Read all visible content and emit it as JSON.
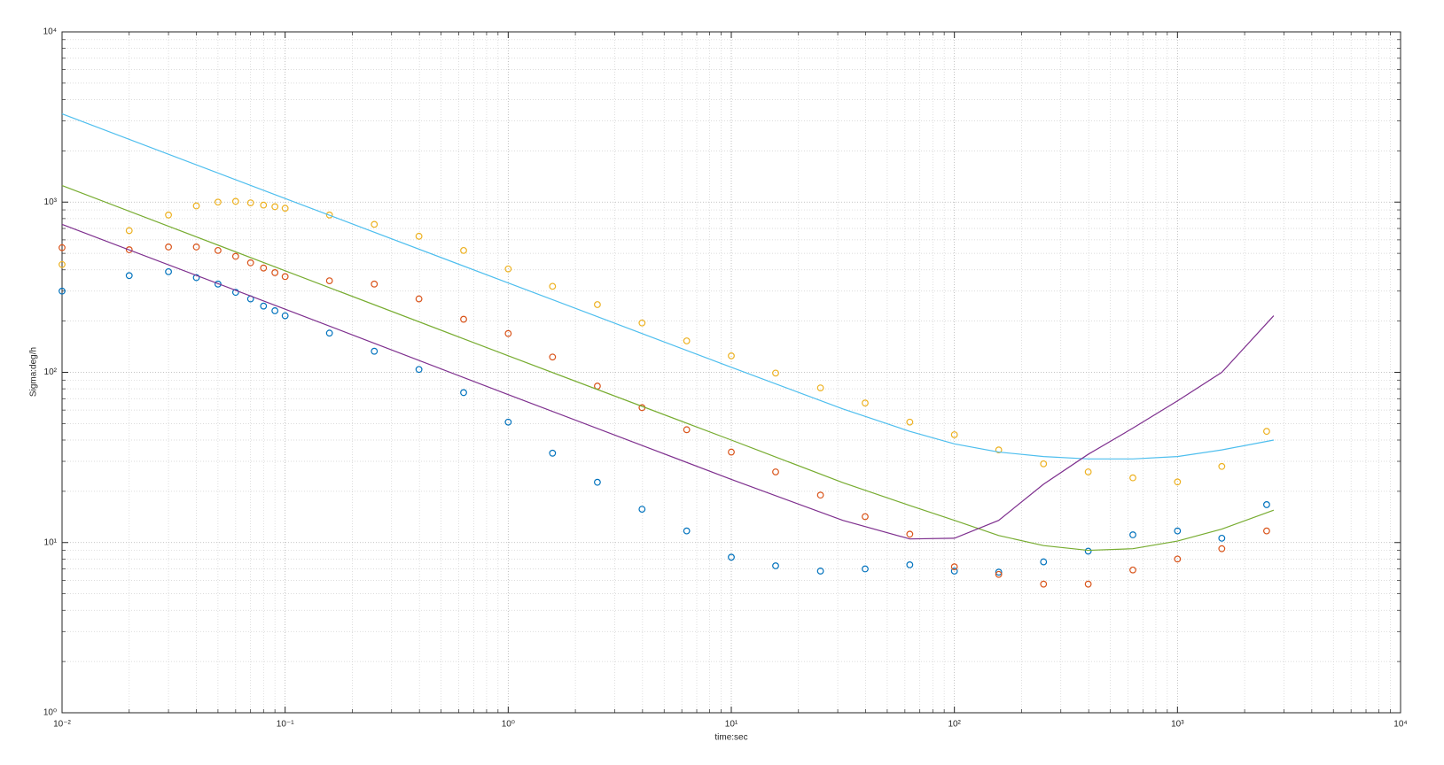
{
  "chart_data": {
    "type": "scatter",
    "x_label": "time:sec",
    "y_label": "Sigma:deg/h",
    "xscale": "log",
    "yscale": "log",
    "grid": true,
    "minor_grid": true,
    "xlim": [
      0.01,
      10000
    ],
    "ylim": [
      1,
      10000
    ],
    "xticks": [
      {
        "value": 0.01,
        "label": "10⁻²"
      },
      {
        "value": 0.1,
        "label": "10⁻¹"
      },
      {
        "value": 1,
        "label": "10⁰"
      },
      {
        "value": 10,
        "label": "10¹"
      },
      {
        "value": 100,
        "label": "10²"
      },
      {
        "value": 1000,
        "label": "10³"
      },
      {
        "value": 10000,
        "label": "10⁴"
      }
    ],
    "yticks": [
      {
        "value": 1,
        "label": "10⁰"
      },
      {
        "value": 10,
        "label": "10¹"
      },
      {
        "value": 100,
        "label": "10²"
      },
      {
        "value": 1000,
        "label": "10³"
      },
      {
        "value": 10000,
        "label": "10⁴"
      }
    ],
    "x": [
      0.01,
      0.02,
      0.03,
      0.04,
      0.05,
      0.06,
      0.07,
      0.08,
      0.09,
      0.1,
      0.158,
      0.251,
      0.398,
      0.631,
      1,
      1.58,
      2.51,
      3.98,
      6.31,
      10,
      15.8,
      25.1,
      39.8,
      63.1,
      100,
      158,
      251,
      398,
      631,
      1000,
      1580,
      2510
    ],
    "series": [
      {
        "mode": "markers",
        "color": "#0072bd",
        "values": [
          300,
          370,
          390,
          360,
          330,
          295,
          270,
          245,
          230,
          215,
          170,
          133,
          104,
          76,
          51,
          33.5,
          22.6,
          15.7,
          11.7,
          8.2,
          7.3,
          6.8,
          7.0,
          7.4,
          6.8,
          6.7,
          7.7,
          8.9,
          11.1,
          11.7,
          10.6,
          16.7
        ]
      },
      {
        "mode": "markers",
        "color": "#d95319",
        "values": [
          540,
          525,
          545,
          545,
          520,
          480,
          440,
          410,
          385,
          365,
          345,
          330,
          270,
          205,
          169,
          123,
          83,
          62,
          46,
          34,
          26,
          19,
          14.2,
          11.2,
          7.2,
          6.5,
          5.7,
          5.7,
          6.9,
          8.0,
          9.2,
          11.7
        ]
      },
      {
        "mode": "markers",
        "color": "#edb120",
        "values": [
          430,
          680,
          840,
          950,
          1000,
          1010,
          990,
          960,
          940,
          920,
          840,
          740,
          630,
          520,
          405,
          320,
          250,
          195,
          153,
          125,
          99,
          81,
          66,
          51,
          43,
          35,
          29,
          26,
          24,
          22.7,
          28,
          45
        ]
      },
      {
        "mode": "lines",
        "color": "#4dbeee",
        "x": [
          0.01,
          0.1,
          1,
          10,
          31.6,
          63.1,
          100,
          158,
          251,
          398,
          631,
          1000,
          1580,
          2700
        ],
        "values": [
          3300,
          1050,
          335,
          107,
          61,
          45,
          38,
          34,
          32,
          31,
          31,
          32,
          35,
          40
        ]
      },
      {
        "mode": "lines",
        "color": "#77ac30",
        "x": [
          0.01,
          0.1,
          1,
          10,
          31.6,
          63.1,
          100,
          158,
          251,
          398,
          631,
          1000,
          1580,
          2700
        ],
        "values": [
          1250,
          395,
          125,
          40,
          22.5,
          16.5,
          13.5,
          11,
          9.6,
          9,
          9.2,
          10.2,
          12,
          15.5
        ]
      },
      {
        "mode": "lines",
        "color": "#7e2f8e",
        "x": [
          0.01,
          0.1,
          1,
          10,
          31.6,
          63.1,
          100,
          158,
          251,
          398,
          631,
          1000,
          1580,
          2700
        ],
        "values": [
          740,
          235,
          74,
          23.5,
          13.5,
          10.5,
          10.6,
          13.5,
          22,
          33,
          47,
          68,
          100,
          215
        ]
      }
    ]
  }
}
